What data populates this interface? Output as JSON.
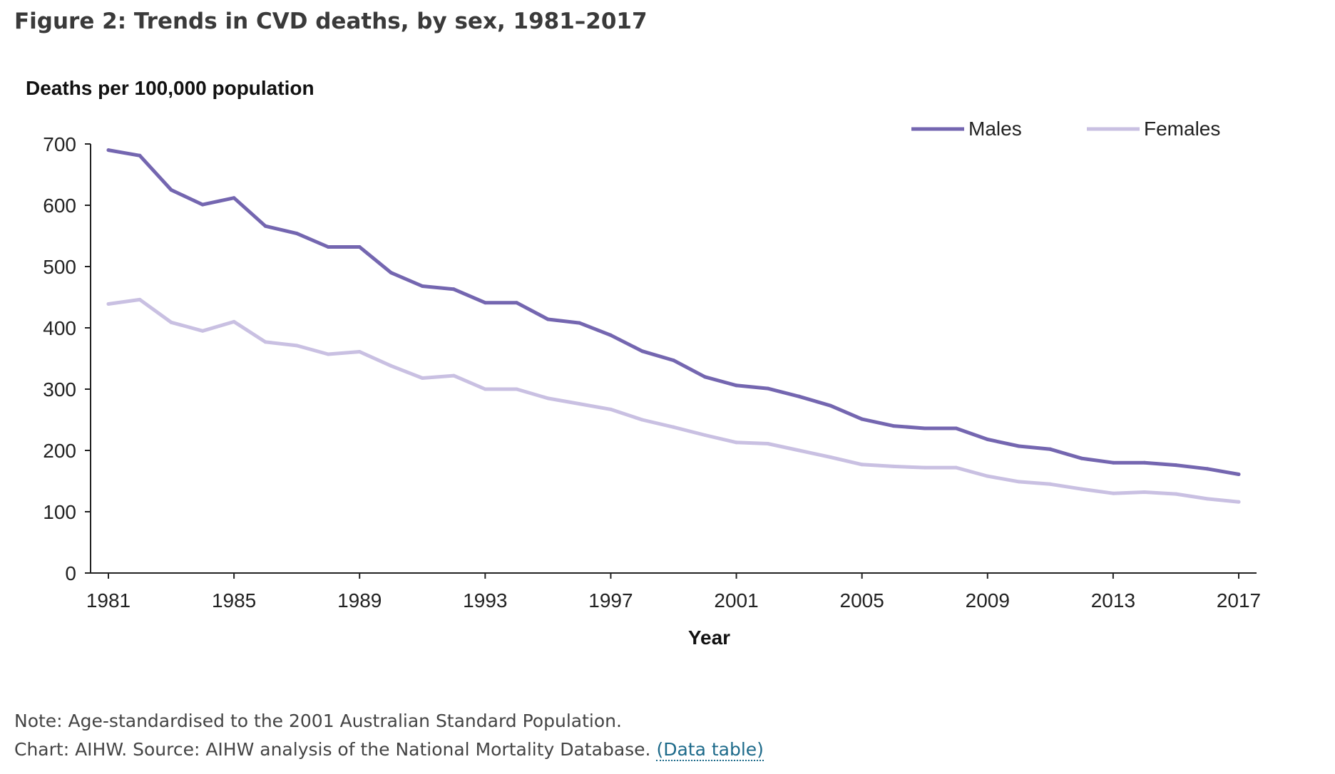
{
  "figure": {
    "title": "Figure 2: Trends in CVD deaths, by sex, 1981–2017"
  },
  "notes": {
    "note": "Note: Age-standardised to the 2001 Australian Standard Population.",
    "source": "Chart: AIHW. Source: AIHW analysis of the National Mortality Database.",
    "link_label": "(Data table)"
  },
  "chart_data": {
    "type": "line",
    "title": "",
    "ylabel": "Deaths per 100,000 population",
    "xlabel": "Year",
    "xlim": [
      1981,
      2017
    ],
    "ylim": [
      0,
      700
    ],
    "x_ticks": [
      1981,
      1985,
      1989,
      1993,
      1997,
      2001,
      2005,
      2009,
      2013,
      2017
    ],
    "y_ticks": [
      0,
      100,
      200,
      300,
      400,
      500,
      600,
      700
    ],
    "grid": false,
    "legend_position": "top-right",
    "x": [
      1981,
      1982,
      1983,
      1984,
      1985,
      1986,
      1987,
      1988,
      1989,
      1990,
      1991,
      1992,
      1993,
      1994,
      1995,
      1996,
      1997,
      1998,
      1999,
      2000,
      2001,
      2002,
      2003,
      2004,
      2005,
      2006,
      2007,
      2008,
      2009,
      2010,
      2011,
      2012,
      2013,
      2014,
      2015,
      2016,
      2017
    ],
    "series": [
      {
        "name": "Males",
        "color": "#7466b0",
        "values": [
          690,
          681,
          625,
          601,
          612,
          566,
          554,
          532,
          532,
          490,
          468,
          463,
          441,
          441,
          414,
          408,
          388,
          362,
          347,
          320,
          306,
          301,
          288,
          273,
          251,
          240,
          236,
          236,
          218,
          207,
          202,
          187,
          180,
          180,
          176,
          170,
          161
        ]
      },
      {
        "name": "Females",
        "color": "#c9c0e2",
        "values": [
          439,
          446,
          409,
          395,
          410,
          377,
          371,
          357,
          361,
          338,
          318,
          322,
          300,
          300,
          285,
          276,
          267,
          250,
          238,
          225,
          213,
          211,
          200,
          189,
          177,
          174,
          172,
          172,
          158,
          149,
          145,
          137,
          130,
          132,
          129,
          121,
          116
        ]
      }
    ]
  }
}
